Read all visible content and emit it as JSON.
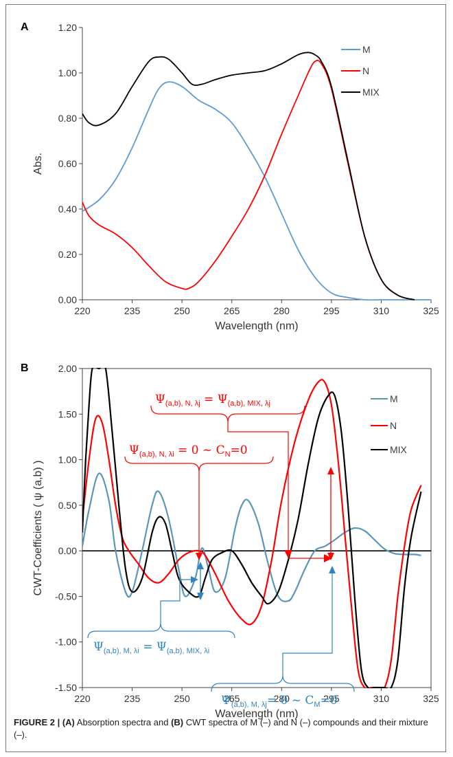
{
  "chart_data": [
    {
      "panel": "A",
      "type": "line",
      "xlabel": "Wavelength (nm)",
      "ylabel": "Abs.",
      "xlim": [
        220,
        325
      ],
      "ylim": [
        0,
        1.2
      ],
      "xticks": [
        220,
        235,
        250,
        265,
        280,
        295,
        310,
        325
      ],
      "yticks": [
        "0.00",
        "0.20",
        "0.40",
        "0.60",
        "0.80",
        "1.00",
        "1.20"
      ],
      "legend_position": "top-right",
      "series": [
        {
          "name": "M",
          "color": "#5b9bd5",
          "x": [
            220,
            225,
            230,
            235,
            240,
            243,
            246,
            250,
            255,
            260,
            265,
            270,
            275,
            280,
            285,
            290,
            295,
            300,
            305,
            310,
            315,
            320,
            325
          ],
          "y": [
            0.39,
            0.44,
            0.53,
            0.67,
            0.84,
            0.93,
            0.96,
            0.94,
            0.88,
            0.84,
            0.78,
            0.67,
            0.54,
            0.38,
            0.22,
            0.1,
            0.03,
            0.01,
            0.0,
            0.0,
            0.0,
            0.0,
            0.0
          ]
        },
        {
          "name": "N",
          "color": "#ff0000",
          "x": [
            220,
            222,
            225,
            230,
            235,
            240,
            245,
            250,
            252,
            255,
            260,
            265,
            270,
            275,
            280,
            285,
            288,
            290,
            292,
            295,
            300,
            305,
            310,
            315,
            320
          ],
          "y": [
            0.43,
            0.37,
            0.33,
            0.29,
            0.23,
            0.15,
            0.08,
            0.05,
            0.05,
            0.08,
            0.17,
            0.28,
            0.4,
            0.55,
            0.73,
            0.9,
            1.0,
            1.05,
            1.04,
            0.93,
            0.6,
            0.28,
            0.09,
            0.02,
            0.0
          ]
        },
        {
          "name": "MIX",
          "color": "#000000",
          "x": [
            220,
            222,
            225,
            230,
            235,
            240,
            243,
            246,
            250,
            253,
            256,
            260,
            265,
            270,
            275,
            280,
            285,
            288,
            290,
            292,
            295,
            300,
            305,
            310,
            315,
            320
          ],
          "y": [
            0.82,
            0.78,
            0.77,
            0.82,
            0.94,
            1.05,
            1.07,
            1.06,
            1.0,
            0.95,
            0.95,
            0.97,
            0.99,
            1.0,
            1.01,
            1.04,
            1.08,
            1.09,
            1.08,
            1.05,
            0.94,
            0.61,
            0.28,
            0.09,
            0.02,
            0.0
          ]
        }
      ]
    },
    {
      "panel": "B",
      "type": "line",
      "xlabel": "Wavelength (nm)",
      "ylabel": "CWT-Coefficients ( ψ (a,b) )",
      "xlim": [
        220,
        325
      ],
      "ylim": [
        -1.5,
        2.0
      ],
      "xticks": [
        220,
        235,
        250,
        265,
        280,
        295,
        310,
        325
      ],
      "yticks": [
        "-1.50",
        "-1.00",
        "-0.50",
        "0.00",
        "0.50",
        "1.00",
        "1.50",
        "2.00"
      ],
      "legend_position": "right",
      "series": [
        {
          "name": "M",
          "color": "#5a96b8",
          "x": [
            220,
            222,
            225,
            228,
            230,
            233,
            235,
            238,
            241,
            243,
            246,
            249,
            251,
            254,
            256,
            258,
            260,
            263,
            266,
            268,
            270,
            273,
            276,
            279,
            282,
            284,
            287,
            290,
            293,
            296,
            299,
            302,
            305,
            308,
            311,
            314,
            317,
            320,
            322
          ],
          "y": [
            0.05,
            0.45,
            0.85,
            0.55,
            0.0,
            -0.45,
            -0.45,
            0.0,
            0.5,
            0.65,
            0.35,
            -0.2,
            -0.5,
            -0.3,
            0.03,
            -0.2,
            -0.45,
            -0.3,
            0.25,
            0.5,
            0.55,
            0.3,
            -0.15,
            -0.5,
            -0.55,
            -0.45,
            -0.2,
            0.0,
            0.05,
            0.12,
            0.2,
            0.25,
            0.22,
            0.12,
            0.02,
            -0.03,
            -0.04,
            -0.04,
            -0.05
          ]
        },
        {
          "name": "N",
          "color": "#ff0000",
          "x": [
            220,
            222,
            224,
            226,
            228,
            230,
            232,
            234,
            237,
            240,
            243,
            246,
            249,
            252,
            255,
            257,
            260,
            264,
            268,
            271,
            274,
            277,
            280,
            284,
            288,
            291,
            293,
            295,
            297,
            299,
            301,
            303,
            305,
            307,
            309,
            311,
            313,
            315,
            317,
            319,
            322
          ],
          "y": [
            0.35,
            1.0,
            1.45,
            1.4,
            1.0,
            0.5,
            0.15,
            0.0,
            -0.15,
            -0.3,
            -0.35,
            -0.25,
            -0.1,
            -0.02,
            0.0,
            -0.05,
            -0.25,
            -0.55,
            -0.75,
            -0.8,
            -0.6,
            -0.1,
            0.55,
            1.2,
            1.65,
            1.85,
            1.85,
            1.6,
            1.0,
            0.2,
            -0.6,
            -1.3,
            -1.5,
            -1.5,
            -1.5,
            -1.5,
            -1.2,
            -0.5,
            0.05,
            0.45,
            0.72
          ]
        },
        {
          "name": "MIX",
          "color": "#000000",
          "x": [
            220,
            221,
            222,
            223,
            225,
            227,
            229,
            231,
            233,
            235,
            238,
            241,
            243,
            245,
            247,
            249,
            252,
            255,
            257,
            259,
            262,
            265,
            268,
            271,
            274,
            276,
            279,
            282,
            285,
            288,
            291,
            294,
            296,
            298,
            300,
            302,
            304,
            306,
            308,
            311,
            313,
            315,
            317,
            319,
            322
          ],
          "y": [
            0.2,
            1.0,
            1.6,
            2.0,
            2.0,
            2.0,
            1.3,
            0.5,
            -0.2,
            -0.45,
            -0.3,
            0.2,
            0.37,
            0.3,
            0.0,
            -0.3,
            -0.45,
            -0.5,
            -0.3,
            -0.1,
            -0.02,
            0.0,
            -0.15,
            -0.35,
            -0.5,
            -0.58,
            -0.45,
            -0.1,
            0.35,
            0.95,
            1.45,
            1.7,
            1.7,
            1.3,
            0.5,
            -0.5,
            -1.3,
            -1.5,
            -1.5,
            -1.5,
            -1.5,
            -1.2,
            -0.4,
            0.15,
            0.65
          ]
        }
      ],
      "zero_line": true
    }
  ],
  "panels": {
    "a": {
      "letter": "A"
    },
    "b": {
      "letter": "B"
    }
  },
  "legend": {
    "m": "M",
    "n": "N",
    "mix": "MIX"
  },
  "annotations": {
    "top_red": {
      "base": "Ψ",
      "sub1": "(a,b), N, λj",
      "mid": " = Ψ",
      "sub2": "(a,b), MIX, λj",
      "color": "#ff0000"
    },
    "mid_red": {
      "base": "Ψ",
      "sub1": "(a,b), N, λi",
      "mid": " = 0 ~ C",
      "sub2": "N",
      "end": "=0",
      "color": "#ff0000"
    },
    "bot_blue_left": {
      "base": "Ψ",
      "sub1": "(a,b), M, λi",
      "mid": " = Ψ",
      "sub2": "(a,b), MIX, λi",
      "color": "#2e86c1"
    },
    "bot_blue_right": {
      "base": "Ψ",
      "sub1": "(a,b), M, λj",
      "mid": "= 0 ~ C",
      "sub2": "M",
      "end": "=0",
      "color": "#2e86c1"
    }
  },
  "caption": {
    "figure_label": "FIGURE 2 |",
    "a_label": "(A)",
    "text1": " Absorption spectra and ",
    "b_label": "(B)",
    "text2": " CWT spectra of M (–) and N (–) compounds and their mixture (–)."
  },
  "colors": {
    "m_a": "#5b9bd5",
    "m_b": "#5a96b8",
    "n": "#ff0000",
    "mix": "#000000",
    "ann_red": "#ff0000",
    "ann_blue": "#2e86c1"
  }
}
